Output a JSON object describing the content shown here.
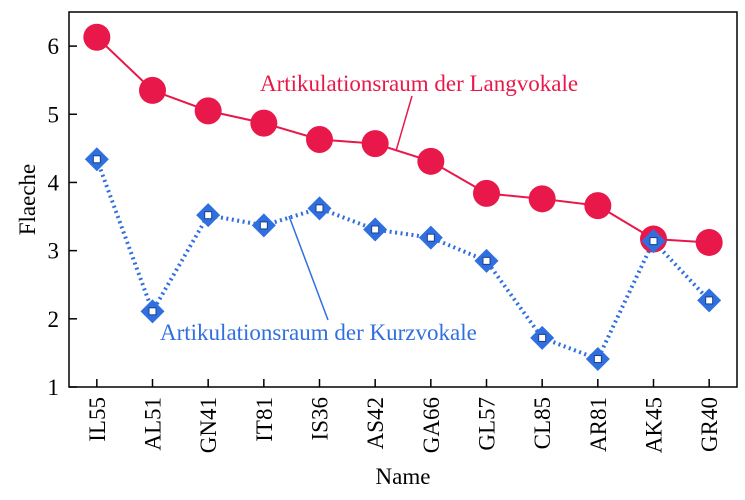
{
  "chart_data": {
    "type": "line",
    "xlabel": "Name",
    "ylabel": "Flaeche",
    "ylim": [
      1,
      6.5
    ],
    "yticks": [
      1,
      2,
      3,
      4,
      5,
      6
    ],
    "ytick_labels": [
      "1",
      "2",
      "3",
      "4",
      "5",
      "6"
    ],
    "categories": [
      "IL55",
      "AL51",
      "GN41",
      "IT81",
      "IS36",
      "AS42",
      "GA66",
      "GL57",
      "CL85",
      "AR81",
      "AK45",
      "GR40"
    ],
    "series": [
      {
        "key": "lang",
        "values": [
          6.13,
          5.35,
          5.05,
          4.87,
          4.63,
          4.57,
          4.31,
          3.84,
          3.76,
          3.66,
          3.17,
          3.12
        ],
        "color": "#e8194a",
        "line_style": "solid",
        "marker": "circle"
      },
      {
        "key": "kurz",
        "values": [
          4.34,
          2.11,
          3.52,
          3.37,
          3.62,
          3.31,
          3.19,
          2.85,
          1.72,
          1.41,
          3.14,
          2.27
        ],
        "color": "#2f6fe0",
        "line_style": "dotted",
        "marker": "diamond"
      }
    ],
    "annotations": [
      {
        "series": "lang",
        "text": "Artikulationsraum der Langvokale",
        "color": "#e8194a"
      },
      {
        "series": "kurz",
        "text": "Artikulationsraum der Kurzvokale",
        "color": "#2f6fe0"
      }
    ],
    "grid": false,
    "legend": "none"
  }
}
